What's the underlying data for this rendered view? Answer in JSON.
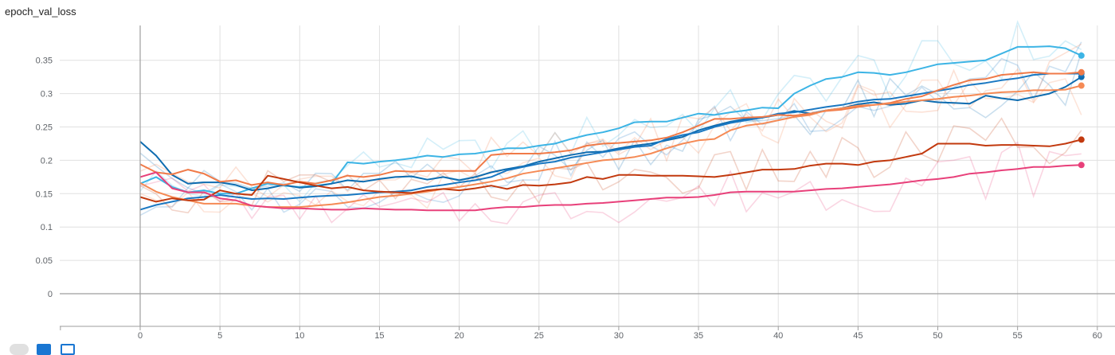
{
  "card": {
    "title": "epoch_val_loss"
  },
  "toolbar": {
    "buttons": [
      "expand-icon",
      "data-selection-icon",
      "fit-domain-icon"
    ]
  },
  "chart_data": {
    "type": "line",
    "title": "epoch_val_loss",
    "xlabel": "",
    "ylabel": "",
    "xlim": [
      -5,
      61
    ],
    "ylim": [
      -0.05,
      0.4
    ],
    "xticks": [
      0,
      5,
      10,
      15,
      20,
      25,
      30,
      35,
      40,
      45,
      50,
      55,
      60
    ],
    "yticks": [
      0,
      0.05,
      0.1,
      0.15,
      0.2,
      0.25,
      0.3,
      0.35
    ],
    "ytick_labels": [
      "0",
      "0.05",
      "0.1",
      "0.15",
      "0.2",
      "0.25",
      "0.3",
      "0.35"
    ],
    "grid": true,
    "legend": "none",
    "series": [
      {
        "color": "#3cb4e5",
        "end_marker": true,
        "values": [
          0.165,
          0.175,
          0.16,
          0.152,
          0.155,
          0.15,
          0.15,
          0.158,
          0.165,
          0.162,
          0.16,
          0.162,
          0.165,
          0.197,
          0.195,
          0.198,
          0.2,
          0.203,
          0.207,
          0.205,
          0.209,
          0.21,
          0.214,
          0.218,
          0.218,
          0.222,
          0.225,
          0.232,
          0.238,
          0.242,
          0.248,
          0.257,
          0.258,
          0.258,
          0.264,
          0.27,
          0.268,
          0.272,
          0.275,
          0.279,
          0.278,
          0.3,
          0.312,
          0.322,
          0.325,
          0.332,
          0.331,
          0.328,
          0.332,
          0.338,
          0.344,
          0.346,
          0.348,
          0.35,
          0.36,
          0.37,
          0.37,
          0.371,
          0.368,
          0.357
        ]
      },
      {
        "color": "#0e6cb0",
        "end_marker": true,
        "values": [
          0.228,
          0.207,
          0.178,
          0.165,
          0.167,
          0.167,
          0.163,
          0.155,
          0.158,
          0.163,
          0.159,
          0.161,
          0.165,
          0.17,
          0.168,
          0.172,
          0.175,
          0.176,
          0.171,
          0.175,
          0.17,
          0.175,
          0.182,
          0.187,
          0.191,
          0.198,
          0.203,
          0.208,
          0.212,
          0.213,
          0.218,
          0.222,
          0.225,
          0.23,
          0.235,
          0.245,
          0.252,
          0.258,
          0.262,
          0.264,
          0.268,
          0.274,
          0.27,
          0.275,
          0.278,
          0.284,
          0.287,
          0.283,
          0.285,
          0.29,
          0.287,
          0.286,
          0.285,
          0.297,
          0.293,
          0.29,
          0.295,
          0.3,
          0.31,
          0.325
        ]
      },
      {
        "color": "#1a78c2",
        "end_marker": true,
        "values": [
          0.126,
          0.133,
          0.138,
          0.143,
          0.145,
          0.148,
          0.145,
          0.142,
          0.143,
          0.142,
          0.144,
          0.146,
          0.147,
          0.148,
          0.15,
          0.152,
          0.153,
          0.155,
          0.16,
          0.163,
          0.167,
          0.17,
          0.175,
          0.185,
          0.19,
          0.195,
          0.198,
          0.204,
          0.208,
          0.212,
          0.216,
          0.22,
          0.222,
          0.232,
          0.238,
          0.242,
          0.25,
          0.256,
          0.26,
          0.264,
          0.27,
          0.272,
          0.276,
          0.28,
          0.283,
          0.288,
          0.291,
          0.292,
          0.296,
          0.3,
          0.304,
          0.308,
          0.313,
          0.316,
          0.32,
          0.323,
          0.328,
          0.33,
          0.33,
          0.33
        ]
      },
      {
        "color": "#f07a48",
        "end_marker": true,
        "values": [
          0.194,
          0.182,
          0.179,
          0.186,
          0.18,
          0.168,
          0.17,
          0.163,
          0.167,
          0.163,
          0.168,
          0.165,
          0.17,
          0.177,
          0.175,
          0.178,
          0.184,
          0.183,
          0.184,
          0.184,
          0.184,
          0.184,
          0.208,
          0.21,
          0.21,
          0.21,
          0.212,
          0.215,
          0.222,
          0.225,
          0.226,
          0.228,
          0.23,
          0.234,
          0.242,
          0.252,
          0.262,
          0.262,
          0.264,
          0.265,
          0.268,
          0.267,
          0.27,
          0.274,
          0.276,
          0.28,
          0.283,
          0.286,
          0.292,
          0.296,
          0.305,
          0.313,
          0.32,
          0.322,
          0.328,
          0.33,
          0.332,
          0.33,
          0.33,
          0.332
        ]
      },
      {
        "color": "#f58a55",
        "end_marker": true,
        "values": [
          0.166,
          0.153,
          0.145,
          0.14,
          0.135,
          0.135,
          0.135,
          0.132,
          0.13,
          0.13,
          0.13,
          0.132,
          0.134,
          0.137,
          0.141,
          0.145,
          0.147,
          0.15,
          0.153,
          0.157,
          0.16,
          0.164,
          0.168,
          0.173,
          0.18,
          0.184,
          0.188,
          0.192,
          0.196,
          0.2,
          0.202,
          0.205,
          0.21,
          0.218,
          0.225,
          0.23,
          0.232,
          0.245,
          0.252,
          0.255,
          0.26,
          0.265,
          0.268,
          0.275,
          0.278,
          0.282,
          0.283,
          0.285,
          0.288,
          0.29,
          0.292,
          0.295,
          0.297,
          0.3,
          0.302,
          0.303,
          0.305,
          0.305,
          0.306,
          0.312
        ]
      },
      {
        "color": "#c2390e",
        "end_marker": true,
        "values": [
          0.145,
          0.138,
          0.143,
          0.14,
          0.141,
          0.155,
          0.15,
          0.148,
          0.177,
          0.172,
          0.167,
          0.162,
          0.158,
          0.16,
          0.155,
          0.153,
          0.152,
          0.151,
          0.155,
          0.157,
          0.155,
          0.158,
          0.162,
          0.157,
          0.163,
          0.162,
          0.164,
          0.167,
          0.175,
          0.172,
          0.178,
          0.178,
          0.177,
          0.177,
          0.177,
          0.176,
          0.175,
          0.178,
          0.182,
          0.186,
          0.186,
          0.187,
          0.192,
          0.195,
          0.195,
          0.193,
          0.198,
          0.2,
          0.205,
          0.21,
          0.225,
          0.225,
          0.225,
          0.222,
          0.223,
          0.223,
          0.222,
          0.221,
          0.225,
          0.231
        ]
      },
      {
        "color": "#e8407a",
        "end_marker": true,
        "values": [
          0.175,
          0.182,
          0.158,
          0.152,
          0.152,
          0.143,
          0.14,
          0.132,
          0.13,
          0.128,
          0.128,
          0.127,
          0.126,
          0.126,
          0.128,
          0.127,
          0.126,
          0.126,
          0.125,
          0.125,
          0.125,
          0.125,
          0.128,
          0.13,
          0.13,
          0.132,
          0.133,
          0.133,
          0.135,
          0.136,
          0.138,
          0.14,
          0.142,
          0.144,
          0.144,
          0.145,
          0.148,
          0.152,
          0.153,
          0.153,
          0.153,
          0.153,
          0.155,
          0.157,
          0.158,
          0.16,
          0.162,
          0.164,
          0.167,
          0.17,
          0.172,
          0.175,
          0.18,
          0.182,
          0.185,
          0.187,
          0.19,
          0.19,
          0.192,
          0.193
        ]
      }
    ]
  }
}
